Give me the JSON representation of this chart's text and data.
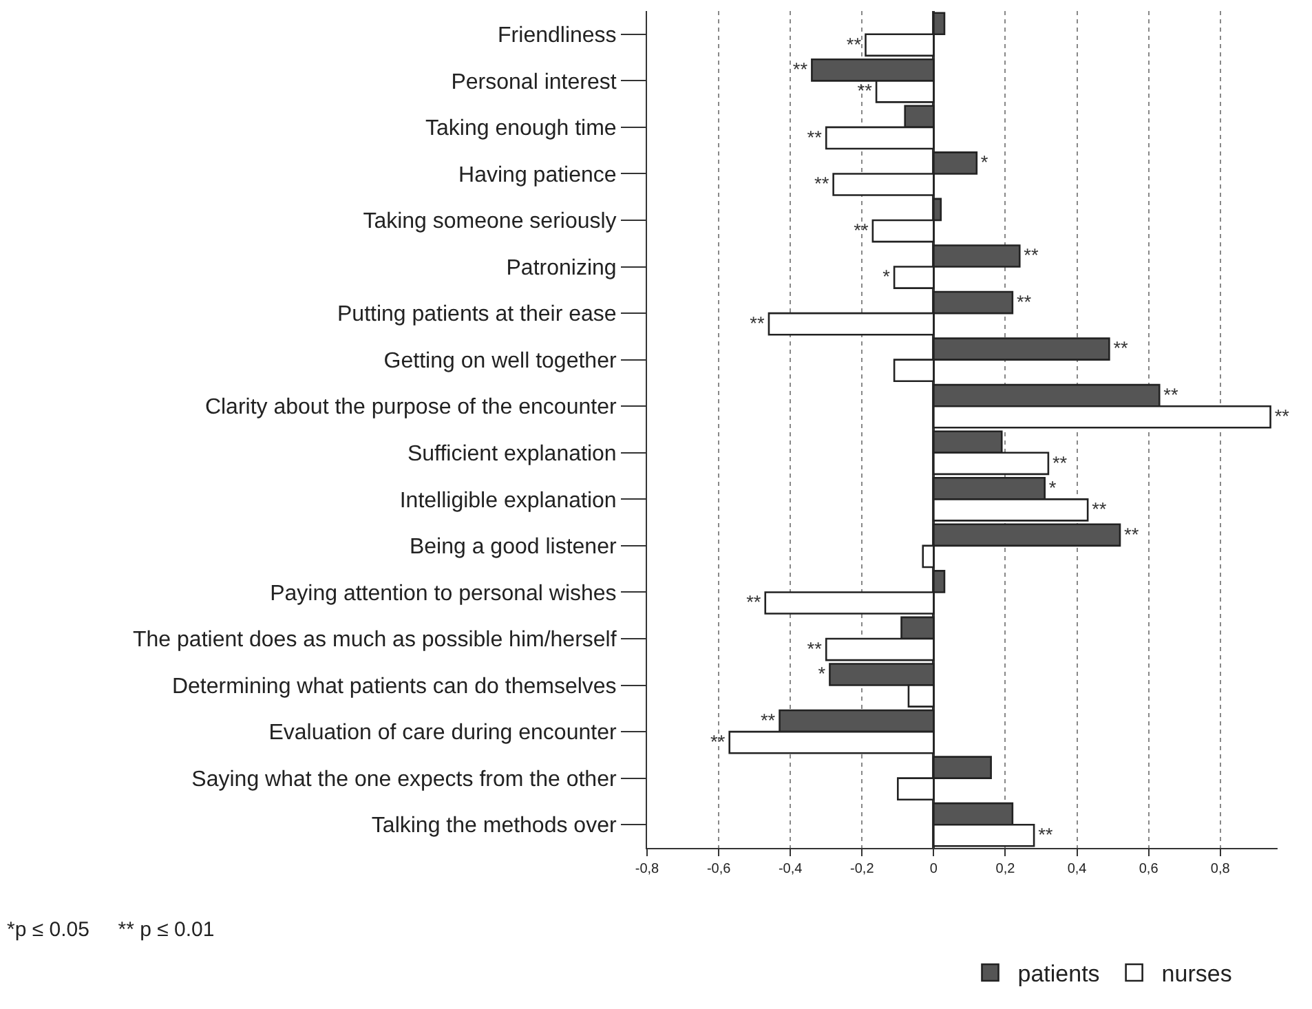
{
  "chart_data": {
    "type": "bar",
    "orientation": "horizontal",
    "categories": [
      "Friendliness",
      "Personal interest",
      "Taking enough time",
      "Having patience",
      "Taking someone seriously",
      "Patronizing",
      "Putting patients at their ease",
      "Getting on well together",
      "Clarity about the purpose of the encounter",
      "Sufficient explanation",
      "Intelligible explanation",
      "Being a good listener",
      "Paying attention to personal wishes",
      "The patient does as much as possible him/herself",
      "Determining what patients can do themselves",
      "Evaluation of care during encounter",
      "Saying what the one expects from the other",
      "Talking the methods over"
    ],
    "series": [
      {
        "name": "patients",
        "color": "#555555",
        "values": [
          0.03,
          -0.34,
          -0.08,
          0.12,
          0.02,
          0.24,
          0.22,
          0.49,
          0.63,
          0.19,
          0.31,
          0.52,
          0.03,
          -0.09,
          -0.29,
          -0.43,
          0.16,
          0.22
        ],
        "value_labels": [
          null,
          "**",
          null,
          "*",
          null,
          "**",
          "**",
          "**",
          "**",
          null,
          "*",
          "**",
          null,
          null,
          "*",
          "**",
          null,
          null
        ]
      },
      {
        "name": "nurses",
        "color": "#ffffff",
        "values": [
          -0.19,
          -0.16,
          -0.3,
          -0.28,
          -0.17,
          -0.11,
          -0.46,
          -0.11,
          0.94,
          0.32,
          0.43,
          -0.03,
          -0.47,
          -0.3,
          -0.07,
          -0.57,
          -0.1,
          0.28
        ],
        "value_labels": [
          "**",
          "**",
          "**",
          "**",
          "**",
          "*",
          "**",
          null,
          "**",
          "**",
          "**",
          null,
          "**",
          "**",
          null,
          "**",
          null,
          "**"
        ]
      }
    ],
    "xlim": [
      -0.8,
      0.96
    ],
    "xticks": [
      {
        "value": -0.8,
        "label": "-0,8"
      },
      {
        "value": -0.6,
        "label": "-0,6"
      },
      {
        "value": -0.4,
        "label": "-0,4"
      },
      {
        "value": -0.2,
        "label": "-0,2"
      },
      0,
      {
        "value": 0.2,
        "label": "0,2"
      },
      {
        "value": 0.4,
        "label": "0,4"
      },
      {
        "value": 0.6,
        "label": "0,6"
      },
      {
        "value": 0.8,
        "label": "0,8"
      }
    ],
    "grid": "x",
    "legend": "bottom",
    "annotations": [
      "*p ≤ 0.05     ** p ≤ 0.01"
    ]
  }
}
